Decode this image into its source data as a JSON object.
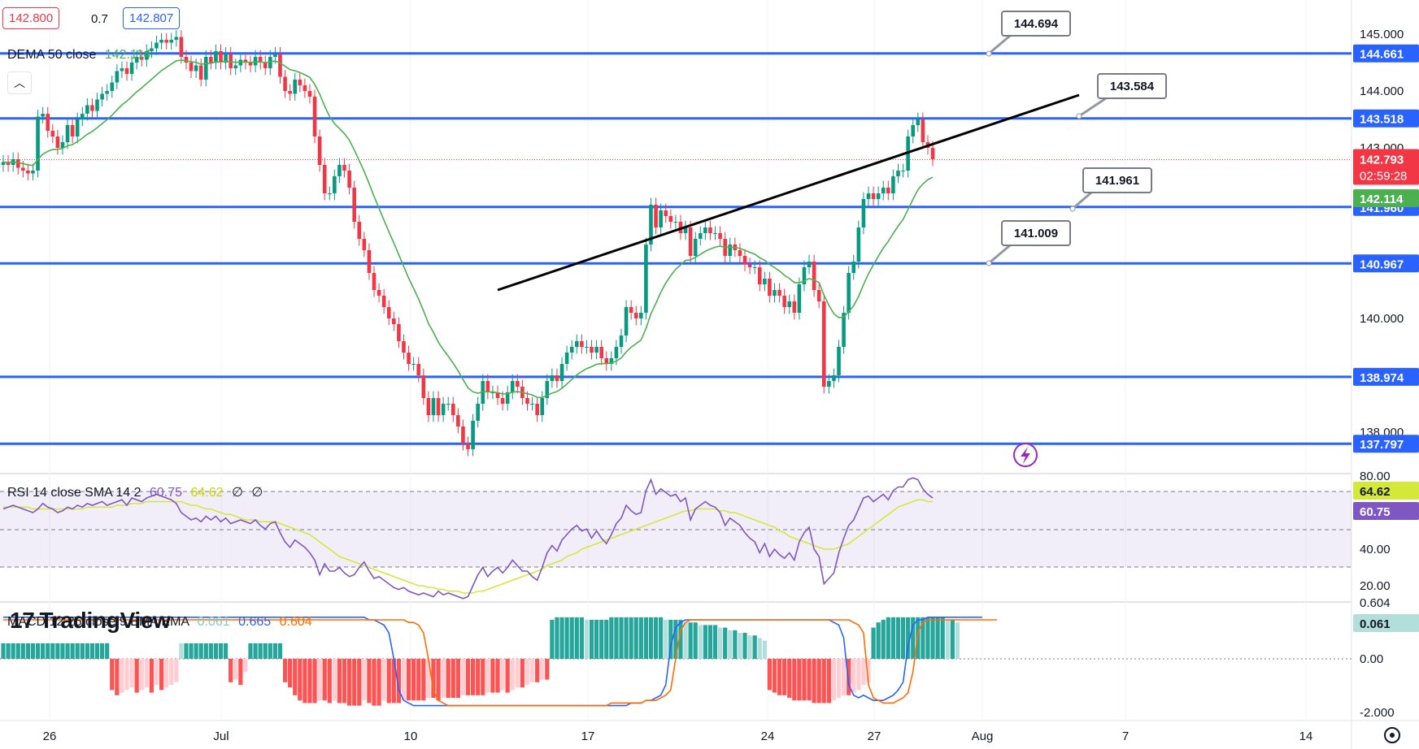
{
  "header": {
    "bid": "142.800",
    "spread": "0.7",
    "ask": "142.807",
    "indicator_main": {
      "name": "DEMA 50 close",
      "value": "142.114",
      "color": "#4caf50"
    },
    "collapse_icon": "chevron-up-icon"
  },
  "rsi_legend": {
    "name": "RSI 14 close SMA 14 2",
    "v1": "60.75",
    "v2": "64.62",
    "v3": "∅",
    "v4": "∅"
  },
  "macd_legend": {
    "name": "MACD 12 26 close 9 EMA EMA",
    "v1": "0.061",
    "v2": "0.665",
    "v3": "0.604"
  },
  "logo": "TradingView",
  "logo_icon": "tradingview-logo-icon",
  "lightning_icon": "lightning-icon",
  "settings_icon": "gear-icon",
  "colors": {
    "up": "#089981",
    "down": "#f23645",
    "level": "#2962ff",
    "dema": "#4caf50",
    "rsi": "#7e57c2",
    "rsi_sma": "#d4e83a",
    "macd": "#2962ff",
    "signal": "#ff6d00"
  },
  "chart_data": {
    "type": "candlestick",
    "price_axis_ticks": [
      "145.000",
      "144.000",
      "143.000",
      "140.000",
      "138.000"
    ],
    "time_axis_labels": [
      "26",
      "Jul",
      "10",
      "17",
      "24",
      "27",
      "Aug",
      "7",
      "14"
    ],
    "horizontal_levels": [
      "144.661",
      "143.518",
      "141.960",
      "140.967",
      "138.974",
      "137.797"
    ],
    "callouts": [
      "144.694",
      "143.584",
      "141.961",
      "141.009"
    ],
    "last_price": "142.793",
    "countdown": "02:59:28",
    "dema_value": "142.114",
    "rsi_axis_ticks": [
      "80.00",
      "40.00",
      "20.00"
    ],
    "rsi_values_axis": [
      "64.62",
      "60.75"
    ],
    "macd_axis_ticks": [
      "0.00",
      "0.604",
      "-2.000"
    ],
    "macd_value_axis": "0.061",
    "candles_close": [
      142.75,
      142.7,
      142.8,
      142.65,
      142.6,
      142.55,
      142.6,
      143.55,
      143.6,
      143.3,
      143.2,
      143.0,
      143.1,
      143.4,
      143.2,
      143.5,
      143.6,
      143.75,
      143.65,
      143.85,
      143.95,
      144.0,
      144.15,
      144.35,
      144.4,
      144.3,
      144.5,
      144.6,
      144.55,
      144.7,
      144.75,
      144.85,
      144.9,
      144.85,
      144.9,
      144.95,
      144.6,
      144.5,
      144.35,
      144.45,
      144.2,
      144.6,
      144.5,
      144.7,
      144.5,
      144.65,
      144.4,
      144.45,
      144.55,
      144.5,
      144.45,
      144.6,
      144.5,
      144.4,
      144.6,
      144.65,
      144.25,
      144.0,
      143.95,
      144.2,
      144.1,
      144.0,
      143.9,
      143.2,
      142.7,
      142.2,
      142.2,
      142.5,
      142.7,
      142.6,
      142.3,
      141.7,
      141.4,
      141.2,
      140.8,
      140.5,
      140.4,
      140.2,
      140.0,
      139.9,
      139.6,
      139.4,
      139.2,
      139.2,
      139.0,
      138.6,
      138.3,
      138.6,
      138.3,
      138.5,
      138.5,
      138.3,
      138.1,
      137.8,
      137.7,
      138.2,
      138.5,
      138.9,
      138.7,
      138.7,
      138.6,
      138.5,
      138.7,
      138.9,
      138.8,
      138.6,
      138.5,
      138.5,
      138.3,
      138.6,
      138.9,
      139.0,
      138.9,
      139.2,
      139.4,
      139.5,
      139.6,
      139.5,
      139.5,
      139.4,
      139.5,
      139.3,
      139.2,
      139.3,
      139.5,
      139.7,
      140.2,
      140.1,
      140.0,
      140.1,
      141.3,
      142.0,
      141.6,
      141.9,
      141.8,
      141.7,
      141.7,
      141.5,
      141.6,
      141.1,
      141.4,
      141.5,
      141.6,
      141.5,
      141.5,
      141.4,
      141.1,
      141.3,
      141.2,
      141.1,
      140.95,
      140.9,
      140.9,
      140.6,
      140.7,
      140.4,
      140.5,
      140.4,
      140.2,
      140.3,
      140.1,
      140.6,
      140.9,
      141.0,
      140.5,
      140.3,
      138.8,
      138.9,
      139.0,
      139.5,
      140.1,
      140.8,
      141.0,
      141.6,
      142.1,
      142.2,
      142.1,
      142.2,
      142.3,
      142.2,
      142.5,
      142.6,
      142.6,
      143.2,
      143.4,
      143.5,
      143.1,
      143.0,
      142.8
    ],
    "rsi": [
      62,
      63,
      64,
      63,
      62,
      61,
      60,
      62,
      65,
      63,
      62,
      60,
      61,
      63,
      62,
      64,
      63,
      65,
      64,
      65,
      66,
      64,
      65,
      66,
      67,
      64,
      68,
      67,
      66,
      68,
      69,
      70,
      69,
      68,
      67,
      65,
      60,
      58,
      56,
      57,
      55,
      58,
      56,
      58,
      55,
      57,
      54,
      55,
      56,
      55,
      54,
      56,
      53,
      51,
      54,
      55,
      49,
      44,
      41,
      45,
      43,
      41,
      38,
      34,
      26,
      32,
      28,
      28,
      30,
      27,
      25,
      26,
      30,
      33,
      28,
      24,
      25,
      23,
      21,
      19,
      18,
      19,
      17,
      16,
      15,
      16,
      15,
      14,
      17,
      15,
      16,
      15,
      14,
      13,
      14,
      20,
      26,
      30,
      25,
      28,
      30,
      27,
      30,
      34,
      31,
      28,
      28,
      25,
      23,
      30,
      38,
      42,
      39,
      45,
      48,
      51,
      53,
      50,
      51,
      46,
      50,
      46,
      43,
      48,
      54,
      57,
      64,
      61,
      59,
      60,
      72,
      78,
      70,
      73,
      71,
      69,
      70,
      66,
      68,
      56,
      62,
      64,
      66,
      64,
      63,
      60,
      53,
      57,
      55,
      53,
      49,
      46,
      44,
      38,
      43,
      36,
      40,
      37,
      35,
      38,
      34,
      44,
      49,
      52,
      40,
      36,
      21,
      24,
      27,
      38,
      46,
      53,
      56,
      62,
      68,
      69,
      66,
      68,
      70,
      67,
      72,
      74,
      74,
      78,
      79,
      78,
      73,
      70,
      68
    ],
    "rsi_sma": [
      63,
      63,
      63,
      63,
      63,
      63,
      62,
      62,
      62,
      62,
      62,
      62,
      62,
      62,
      62,
      62,
      62,
      63,
      63,
      63,
      63,
      63,
      63,
      64,
      64,
      64,
      65,
      65,
      65,
      66,
      66,
      66,
      66,
      66,
      66,
      66,
      66,
      65,
      64,
      64,
      63,
      62,
      62,
      61,
      60,
      59,
      59,
      58,
      57,
      56,
      56,
      56,
      55,
      55,
      55,
      55,
      54,
      53,
      52,
      51,
      50,
      49,
      48,
      46,
      44,
      42,
      40,
      38,
      36,
      35,
      34,
      33,
      32,
      31,
      30,
      29,
      28,
      27,
      26,
      25,
      24,
      23,
      22,
      21,
      20,
      20,
      19,
      19,
      18,
      18,
      17,
      17,
      17,
      16,
      16,
      16,
      17,
      17,
      18,
      19,
      20,
      21,
      22,
      23,
      24,
      25,
      26,
      27,
      28,
      29,
      31,
      32,
      33,
      34,
      36,
      37,
      38,
      40,
      41,
      42,
      43,
      44,
      45,
      46,
      47,
      48,
      49,
      50,
      51,
      52,
      53,
      54,
      55,
      56,
      57,
      58,
      59,
      60,
      61,
      61,
      62,
      62,
      62,
      62,
      62,
      61,
      61,
      60,
      60,
      59,
      58,
      57,
      56,
      55,
      54,
      53,
      52,
      50,
      49,
      47,
      46,
      45,
      44,
      43,
      42,
      41,
      40,
      40,
      40,
      41,
      42,
      43,
      45,
      47,
      49,
      51,
      53,
      55,
      57,
      59,
      61,
      63,
      64,
      65,
      66,
      67,
      67,
      66,
      66
    ],
    "macd_hist": [
      0.6,
      0.6,
      0.6,
      0.6,
      0.6,
      0.6,
      0.6,
      0.6,
      0.6,
      0.6,
      0.6,
      0.6,
      0.6,
      0.6,
      0.6,
      0.6,
      0.6,
      0.6,
      0.6,
      0.6,
      0.6,
      0.6,
      -1.2,
      -1.4,
      -1.3,
      -1.2,
      -1.1,
      -1.3,
      -1.2,
      -1.1,
      -1.3,
      -1.0,
      -1.2,
      -1.1,
      -1.0,
      -0.9,
      0.6,
      0.6,
      0.6,
      0.6,
      0.6,
      0.6,
      0.6,
      0.6,
      0.6,
      0.6,
      -0.9,
      -0.8,
      -1.0,
      -0.5,
      0.6,
      0.6,
      0.6,
      0.6,
      0.6,
      0.6,
      0.6,
      -0.9,
      -1.1,
      -1.4,
      -1.6,
      -1.7,
      -1.7,
      -1.7,
      -1.6,
      -1.6,
      -1.7,
      -1.6,
      -1.7,
      -1.7,
      -1.8,
      -1.8,
      -1.8,
      -1.6,
      -1.7,
      -1.8,
      -1.8,
      -1.6,
      -1.7,
      -1.7,
      -1.7,
      -1.6,
      -1.6,
      -1.6,
      -1.6,
      -1.6,
      -1.5,
      -1.5,
      -1.6,
      -1.5,
      -1.5,
      -1.5,
      -1.5,
      -1.4,
      -1.4,
      -1.4,
      -1.4,
      -1.4,
      -1.3,
      -1.3,
      -1.3,
      -1.2,
      -1.3,
      -1.2,
      -1.1,
      -1.1,
      -1.0,
      -0.9,
      -0.9,
      -0.8,
      -0.8,
      1.5,
      1.6,
      1.6,
      1.6,
      1.6,
      1.6,
      1.6,
      1.5,
      1.5,
      1.5,
      1.5,
      1.5,
      1.6,
      1.6,
      1.6,
      1.6,
      1.6,
      1.6,
      1.6,
      1.6,
      1.6,
      1.6,
      1.6,
      1.5,
      1.5,
      1.5,
      1.5,
      1.4,
      1.4,
      1.4,
      1.3,
      1.3,
      1.3,
      1.3,
      1.2,
      1.2,
      1.1,
      1.1,
      1.0,
      1.0,
      0.9,
      0.9,
      0.8,
      0.7,
      -1.2,
      -1.3,
      -1.4,
      -1.4,
      -1.5,
      -1.6,
      -1.6,
      -1.6,
      -1.6,
      -1.7,
      -1.7,
      -1.7,
      -1.7,
      -1.6,
      -1.5,
      -1.4,
      -1.4,
      -1.3,
      -1.2,
      -1.0,
      -0.9,
      1.2,
      1.4,
      1.5,
      1.6,
      1.6,
      1.6,
      1.6,
      1.6,
      1.6,
      1.6,
      1.6,
      1.6,
      1.6,
      1.6,
      1.6,
      1.5,
      1.5,
      1.4
    ],
    "macd_line": [
      1.6,
      1.6,
      1.6,
      1.6,
      1.6,
      1.6,
      1.6,
      1.6,
      1.6,
      1.6,
      1.6,
      1.6,
      1.6,
      1.6,
      1.6,
      1.6,
      1.6,
      1.6,
      1.6,
      1.6,
      1.6,
      1.6,
      1.6,
      1.6,
      1.6,
      1.6,
      1.6,
      1.6,
      1.6,
      1.6,
      1.6,
      1.6,
      1.6,
      1.6,
      1.6,
      1.6,
      1.6,
      1.6,
      1.6,
      1.6,
      1.6,
      1.6,
      1.6,
      1.6,
      1.6,
      1.6,
      1.6,
      1.6,
      1.6,
      1.6,
      1.6,
      1.6,
      1.6,
      1.6,
      1.6,
      1.6,
      1.6,
      1.6,
      1.6,
      1.6,
      1.6,
      1.6,
      1.6,
      1.6,
      1.6,
      1.6,
      1.6,
      1.6,
      1.6,
      1.6,
      1.6,
      1.6,
      1.6,
      1.6,
      1.5,
      1.5,
      1.4,
      1.3,
      1.0,
      0.0,
      -1.2,
      -1.6,
      -1.7,
      -1.8,
      -1.8,
      -1.8,
      -1.8,
      -1.8,
      -1.8,
      -1.8,
      -1.8,
      -1.8,
      -1.8,
      -1.8,
      -1.8,
      -1.8,
      -1.8,
      -1.8,
      -1.8,
      -1.8,
      -1.8,
      -1.8,
      -1.8,
      -1.8,
      -1.8,
      -1.8,
      -1.8,
      -1.8,
      -1.8,
      -1.8,
      -1.8,
      -1.8,
      -1.8,
      -1.8,
      -1.8,
      -1.8,
      -1.8,
      -1.8,
      -1.8,
      -1.8,
      -1.8,
      -1.8,
      -1.8,
      -1.8,
      -1.8,
      -1.8,
      -1.8,
      -1.7,
      -1.7,
      -1.7,
      -1.6,
      -1.6,
      -1.5,
      -1.4,
      -1.0,
      0.5,
      1.2,
      1.4,
      1.5,
      1.5,
      1.5,
      1.5,
      1.5,
      1.5,
      1.5,
      1.5,
      1.5,
      1.5,
      1.5,
      1.5,
      1.5,
      1.5,
      1.5,
      1.5,
      1.5,
      1.5,
      1.5,
      1.5,
      1.5,
      1.5,
      1.5,
      1.5,
      1.5,
      1.5,
      1.5,
      1.5,
      1.5,
      1.5,
      1.4,
      1.3,
      0.8,
      -1.0,
      -1.4,
      -1.5,
      -1.4,
      -1.5,
      -1.6,
      -1.6,
      -1.6,
      -1.5,
      -1.4,
      -1.2,
      -0.9,
      0.5,
      1.3,
      1.5,
      1.5,
      1.6,
      1.6,
      1.6,
      1.6,
      1.6,
      1.6,
      1.6,
      1.6,
      1.6,
      1.6,
      1.6,
      1.6
    ],
    "signal_line": [
      1.5,
      1.5,
      1.5,
      1.5,
      1.5,
      1.5,
      1.5,
      1.5,
      1.5,
      1.5,
      1.5,
      1.5,
      1.5,
      1.5,
      1.5,
      1.5,
      1.5,
      1.5,
      1.5,
      1.5,
      1.5,
      1.5,
      1.5,
      1.5,
      1.5,
      1.5,
      1.5,
      1.5,
      1.5,
      1.5,
      1.5,
      1.5,
      1.5,
      1.5,
      1.5,
      1.5,
      1.5,
      1.5,
      1.5,
      1.5,
      1.5,
      1.5,
      1.5,
      1.5,
      1.5,
      1.5,
      1.5,
      1.5,
      1.5,
      1.5,
      1.5,
      1.5,
      1.5,
      1.5,
      1.5,
      1.5,
      1.5,
      1.5,
      1.5,
      1.5,
      1.5,
      1.5,
      1.5,
      1.5,
      1.5,
      1.5,
      1.5,
      1.5,
      1.5,
      1.5,
      1.5,
      1.5,
      1.5,
      1.5,
      1.5,
      1.5,
      1.5,
      1.5,
      1.5,
      1.5,
      1.5,
      1.5,
      1.4,
      1.4,
      1.3,
      1.0,
      0.0,
      -1.2,
      -1.6,
      -1.7,
      -1.8,
      -1.8,
      -1.8,
      -1.8,
      -1.8,
      -1.8,
      -1.8,
      -1.8,
      -1.8,
      -1.8,
      -1.8,
      -1.8,
      -1.8,
      -1.8,
      -1.8,
      -1.8,
      -1.8,
      -1.8,
      -1.8,
      -1.8,
      -1.8,
      -1.8,
      -1.8,
      -1.8,
      -1.8,
      -1.8,
      -1.8,
      -1.8,
      -1.8,
      -1.8,
      -1.8,
      -1.8,
      -1.8,
      -1.7,
      -1.7,
      -1.7,
      -1.7,
      -1.7,
      -1.7,
      -1.7,
      -1.6,
      -1.6,
      -1.6,
      -1.5,
      -1.4,
      -1.2,
      0.0,
      1.1,
      1.4,
      1.5,
      1.5,
      1.5,
      1.5,
      1.5,
      1.5,
      1.5,
      1.5,
      1.5,
      1.5,
      1.5,
      1.5,
      1.5,
      1.5,
      1.5,
      1.5,
      1.5,
      1.5,
      1.5,
      1.5,
      1.5,
      1.5,
      1.5,
      1.5,
      1.5,
      1.5,
      1.5,
      1.5,
      1.5,
      1.5,
      1.5,
      1.5,
      1.5,
      1.4,
      1.3,
      1.0,
      -1.0,
      -1.5,
      -1.6,
      -1.7,
      -1.7,
      -1.7,
      -1.6,
      -1.5,
      -1.3,
      -0.5,
      1.0,
      1.4,
      1.5,
      1.5,
      1.5,
      1.5,
      1.5,
      1.5,
      1.5,
      1.5,
      1.5,
      1.5,
      1.5,
      1.5,
      1.5,
      1.5,
      1.5
    ]
  }
}
